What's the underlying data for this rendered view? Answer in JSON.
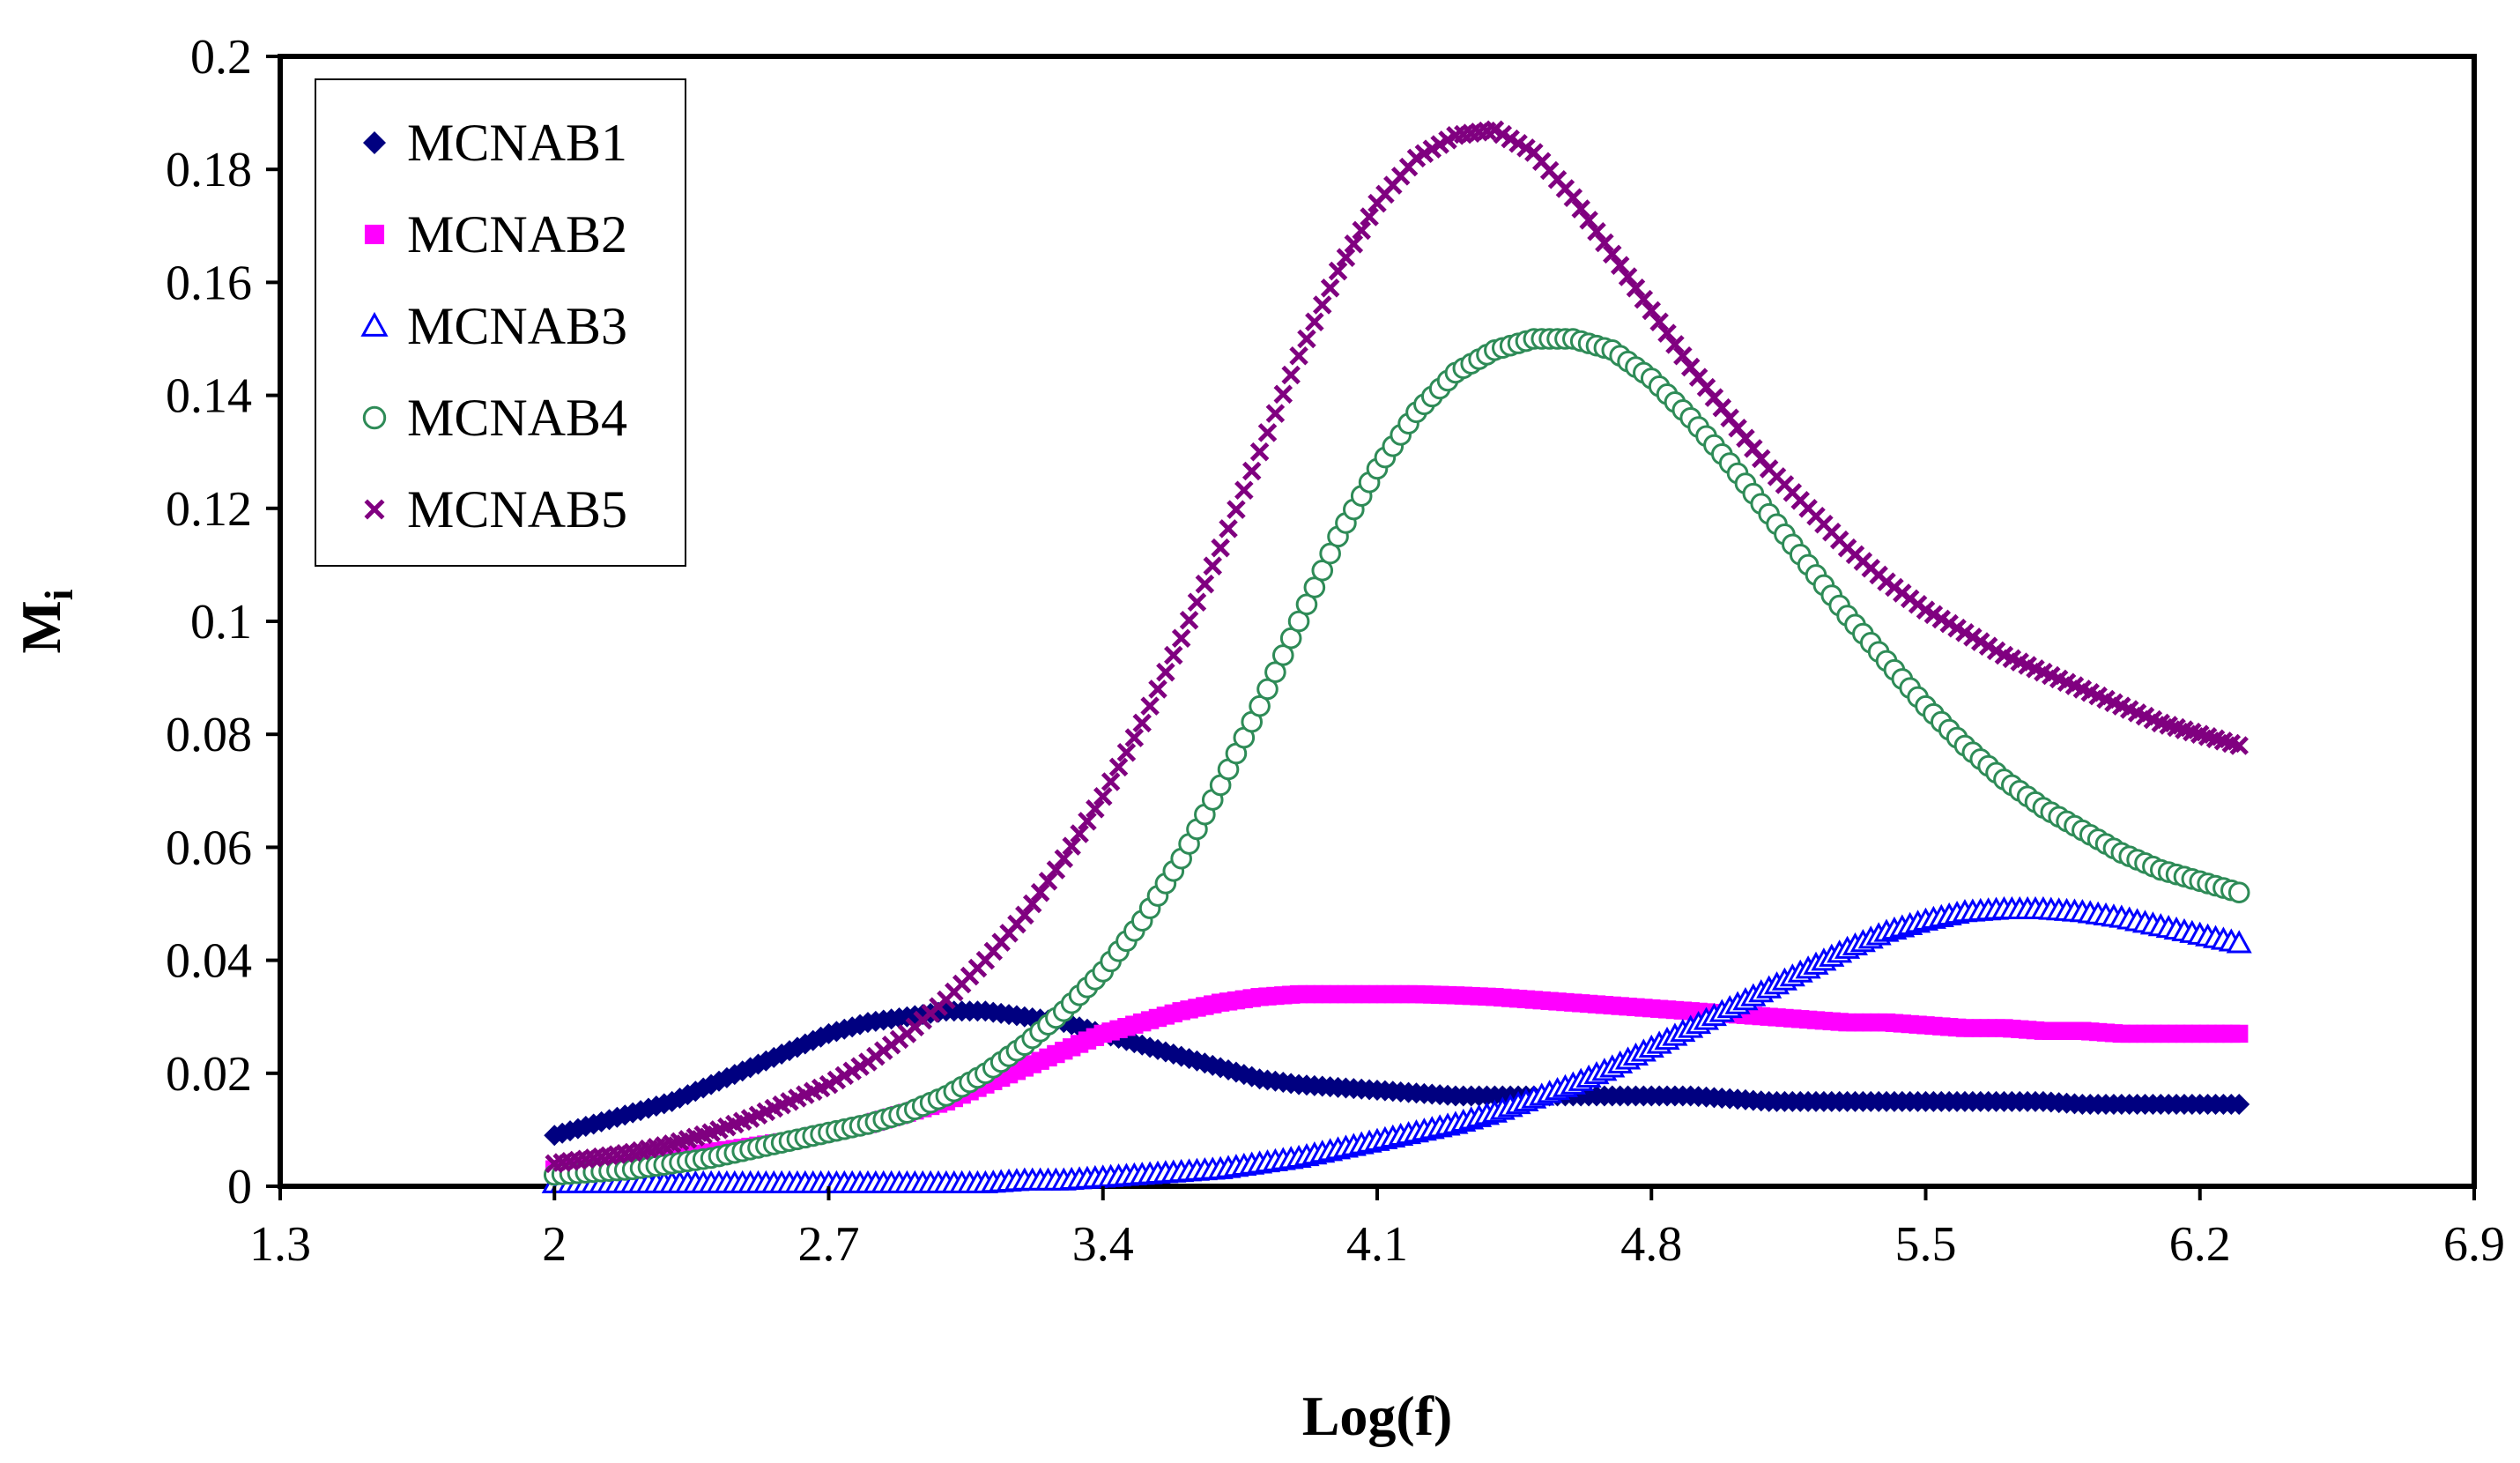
{
  "chart_data": {
    "type": "scatter",
    "title": "",
    "xlabel": "Log(f)",
    "ylabel": "M",
    "ylabel_subscript": "i",
    "xlim": [
      1.3,
      6.9
    ],
    "ylim": [
      0,
      0.2
    ],
    "x_ticks": [
      "1.3",
      "2",
      "2.7",
      "3.4",
      "4.1",
      "4.8",
      "5.5",
      "6.2",
      "6.9"
    ],
    "y_ticks": [
      "0",
      "0.02",
      "0.04",
      "0.06",
      "0.08",
      "0.1",
      "0.12",
      "0.14",
      "0.16",
      "0.18",
      "0.2"
    ],
    "grid": false,
    "legend_position": "top-left",
    "x": [
      2.0,
      2.1,
      2.2,
      2.3,
      2.4,
      2.5,
      2.6,
      2.7,
      2.8,
      2.9,
      3.0,
      3.1,
      3.2,
      3.3,
      3.4,
      3.5,
      3.6,
      3.7,
      3.8,
      3.9,
      4.0,
      4.1,
      4.2,
      4.3,
      4.4,
      4.5,
      4.6,
      4.7,
      4.8,
      4.9,
      5.0,
      5.1,
      5.2,
      5.3,
      5.4,
      5.5,
      5.6,
      5.7,
      5.8,
      5.9,
      6.0,
      6.1,
      6.2,
      6.3
    ],
    "series": [
      {
        "name": "MCNAB1",
        "color": "#000080",
        "marker": "diamond",
        "values": [
          0.009,
          0.011,
          0.013,
          0.015,
          0.018,
          0.021,
          0.024,
          0.027,
          0.029,
          0.03,
          0.031,
          0.031,
          0.03,
          0.029,
          0.027,
          0.025,
          0.023,
          0.021,
          0.019,
          0.018,
          0.0175,
          0.017,
          0.0165,
          0.016,
          0.016,
          0.016,
          0.016,
          0.016,
          0.016,
          0.016,
          0.0155,
          0.015,
          0.015,
          0.015,
          0.015,
          0.015,
          0.015,
          0.015,
          0.015,
          0.0145,
          0.0145,
          0.0145,
          0.0145,
          0.0145
        ]
      },
      {
        "name": "MCNAB2",
        "color": "#FF00FF",
        "marker": "square",
        "values": [
          0.003,
          0.0035,
          0.004,
          0.005,
          0.006,
          0.007,
          0.008,
          0.0095,
          0.011,
          0.013,
          0.015,
          0.018,
          0.021,
          0.024,
          0.027,
          0.029,
          0.031,
          0.0325,
          0.0335,
          0.034,
          0.034,
          0.034,
          0.034,
          0.0338,
          0.0335,
          0.033,
          0.0325,
          0.032,
          0.0315,
          0.031,
          0.0305,
          0.03,
          0.0295,
          0.029,
          0.029,
          0.0285,
          0.028,
          0.028,
          0.0275,
          0.0275,
          0.027,
          0.027,
          0.027,
          0.027
        ]
      },
      {
        "name": "MCNAB3",
        "color": "#0000FF",
        "marker": "triangle",
        "values": [
          0.0005,
          0.0005,
          0.0005,
          0.0005,
          0.0005,
          0.0005,
          0.0005,
          0.0005,
          0.0005,
          0.0005,
          0.0005,
          0.0005,
          0.001,
          0.001,
          0.0015,
          0.002,
          0.0025,
          0.003,
          0.004,
          0.005,
          0.0065,
          0.008,
          0.0095,
          0.011,
          0.013,
          0.0155,
          0.018,
          0.021,
          0.0245,
          0.028,
          0.0315,
          0.035,
          0.0385,
          0.042,
          0.045,
          0.047,
          0.0485,
          0.049,
          0.049,
          0.0485,
          0.0475,
          0.046,
          0.0445,
          0.043
        ]
      },
      {
        "name": "MCNAB4",
        "color": "#2E8B57",
        "marker": "circle",
        "values": [
          0.002,
          0.0025,
          0.003,
          0.004,
          0.005,
          0.0065,
          0.008,
          0.0095,
          0.011,
          0.013,
          0.016,
          0.02,
          0.025,
          0.031,
          0.038,
          0.047,
          0.058,
          0.071,
          0.085,
          0.1,
          0.115,
          0.127,
          0.137,
          0.144,
          0.148,
          0.15,
          0.15,
          0.148,
          0.143,
          0.136,
          0.128,
          0.119,
          0.11,
          0.101,
          0.093,
          0.085,
          0.078,
          0.072,
          0.067,
          0.063,
          0.059,
          0.056,
          0.054,
          0.052
        ]
      },
      {
        "name": "MCNAB5",
        "color": "#800080",
        "marker": "cross",
        "values": [
          0.004,
          0.005,
          0.006,
          0.0075,
          0.0095,
          0.012,
          0.015,
          0.018,
          0.022,
          0.027,
          0.033,
          0.04,
          0.048,
          0.058,
          0.069,
          0.082,
          0.097,
          0.113,
          0.13,
          0.147,
          0.162,
          0.174,
          0.182,
          0.186,
          0.187,
          0.183,
          0.175,
          0.165,
          0.155,
          0.145,
          0.136,
          0.127,
          0.12,
          0.113,
          0.107,
          0.102,
          0.098,
          0.094,
          0.091,
          0.088,
          0.085,
          0.082,
          0.08,
          0.078
        ]
      }
    ]
  }
}
